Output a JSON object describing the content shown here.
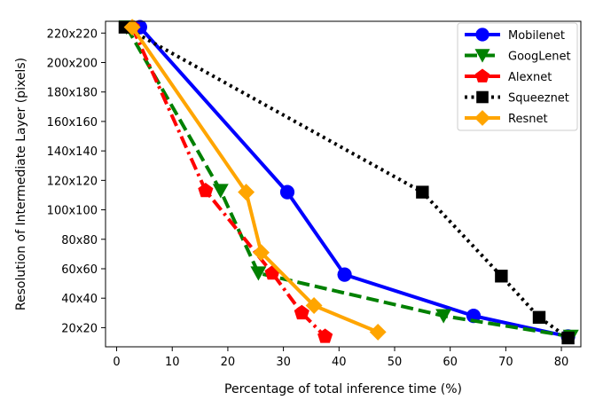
{
  "chart_data": {
    "type": "line",
    "title": "",
    "xlabel": "Percentage of total inference time (%)",
    "ylabel": "Resolution of Intermediate Layer (pixels)",
    "xlim": [
      -2,
      83.5
    ],
    "ylim": [
      7,
      228
    ],
    "xticks": [
      0,
      10,
      20,
      30,
      40,
      50,
      60,
      70,
      80
    ],
    "yticks": [
      20,
      40,
      60,
      80,
      100,
      120,
      140,
      160,
      180,
      200,
      220
    ],
    "ytick_labels": [
      "20x20",
      "40x40",
      "60x60",
      "80x80",
      "100x100",
      "120x120",
      "140x140",
      "160x160",
      "180x180",
      "200x200",
      "220x220"
    ],
    "legend_position": "top-right",
    "series": [
      {
        "name": "Mobilenet",
        "color": "#0000ff",
        "dash": "solid",
        "marker": "circle",
        "points": [
          [
            4.2,
            224
          ],
          [
            30.7,
            112
          ],
          [
            41,
            56
          ],
          [
            64.2,
            28
          ],
          [
            81.2,
            14
          ]
        ]
      },
      {
        "name": "GoogLenet",
        "color": "#008000",
        "dash": "dashed",
        "marker": "triangle-down",
        "points": [
          [
            1.8,
            224
          ],
          [
            18.7,
            113
          ],
          [
            25.5,
            57
          ],
          [
            58.8,
            28
          ],
          [
            81.7,
            14
          ]
        ]
      },
      {
        "name": "Alexnet",
        "color": "#ff0000",
        "dash": "dashdot",
        "marker": "pentagon",
        "points": [
          [
            2.8,
            224
          ],
          [
            16,
            113
          ],
          [
            28,
            57
          ],
          [
            33.3,
            30
          ],
          [
            37.5,
            14
          ]
        ]
      },
      {
        "name": "Squeeznet",
        "color": "#000000",
        "dash": "dotted",
        "marker": "square",
        "points": [
          [
            1.5,
            224
          ],
          [
            55,
            112
          ],
          [
            69.2,
            55
          ],
          [
            76,
            27
          ],
          [
            81.2,
            13
          ]
        ]
      },
      {
        "name": "Resnet",
        "color": "#ffa500",
        "dash": "solid",
        "marker": "diamond",
        "points": [
          [
            2.8,
            224
          ],
          [
            23.3,
            112
          ],
          [
            26,
            71
          ],
          [
            35.5,
            35
          ],
          [
            47,
            17
          ]
        ]
      }
    ]
  }
}
